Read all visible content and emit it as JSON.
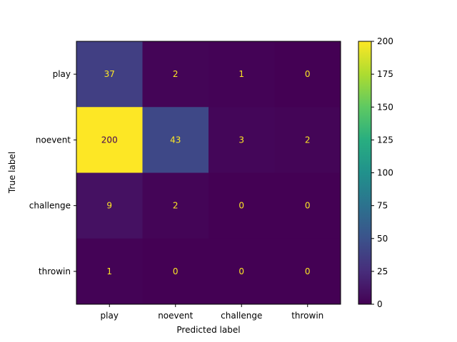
{
  "chart_data": {
    "type": "heatmap",
    "title": "",
    "xlabel": "Predicted label",
    "ylabel": "True label",
    "x_categories": [
      "play",
      "noevent",
      "challenge",
      "throwin"
    ],
    "y_categories": [
      "play",
      "noevent",
      "challenge",
      "throwin"
    ],
    "matrix": [
      [
        37,
        2,
        1,
        0
      ],
      [
        200,
        43,
        3,
        2
      ],
      [
        9,
        2,
        0,
        0
      ],
      [
        1,
        0,
        0,
        0
      ]
    ],
    "colormap": "viridis",
    "colorbar": {
      "range": [
        0,
        200
      ],
      "ticks": [
        0,
        25,
        50,
        75,
        100,
        125,
        150,
        175,
        200
      ]
    },
    "text_colors": {
      "on_dark": "#fde725",
      "on_light": "#440154"
    }
  }
}
